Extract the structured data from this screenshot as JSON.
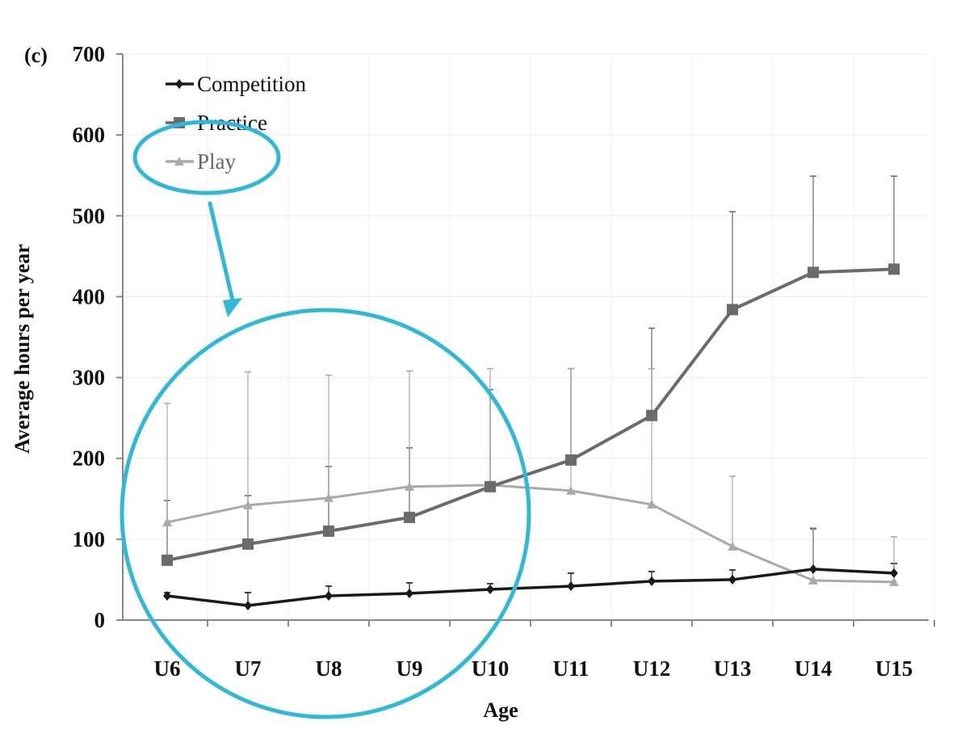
{
  "chart_data": {
    "type": "line",
    "panel_label": "(c)",
    "title": "",
    "xlabel": "Age",
    "ylabel": "Average hours per year",
    "ylim": [
      0,
      700
    ],
    "yticks": [
      0,
      100,
      200,
      300,
      400,
      500,
      600,
      700
    ],
    "categories": [
      "U6",
      "U7",
      "U8",
      "U9",
      "U10",
      "U11",
      "U12",
      "U13",
      "U14",
      "U15"
    ],
    "grid": true,
    "legend_position": "top-left",
    "series": [
      {
        "name": "Competition",
        "marker": "diamond",
        "color": "#1a1a1a",
        "values": [
          30,
          18,
          30,
          33,
          38,
          42,
          48,
          50,
          63,
          58
        ],
        "error_upper": [
          34,
          34,
          42,
          46,
          45,
          58,
          60,
          62,
          113,
          70
        ]
      },
      {
        "name": "Practice",
        "marker": "square",
        "color": "#6b6b6b",
        "values": [
          74,
          94,
          110,
          127,
          165,
          198,
          253,
          384,
          430,
          434
        ],
        "error_upper": [
          148,
          154,
          190,
          213,
          285,
          311,
          361,
          505,
          549,
          549
        ]
      },
      {
        "name": "Play",
        "marker": "triangle",
        "color": "#aaaaaa",
        "values": [
          121,
          142,
          151,
          165,
          167,
          160,
          143,
          91,
          49,
          47
        ],
        "error_upper": [
          268,
          307,
          303,
          308,
          311,
          311,
          311,
          178,
          114,
          103
        ]
      }
    ],
    "annotations": [
      {
        "shape": "ellipse",
        "color": "#30b8d8",
        "target": "legend-play"
      },
      {
        "shape": "circle",
        "color": "#30b8d8",
        "target": "U6-U10"
      },
      {
        "shape": "arrow",
        "color": "#30b8d8"
      }
    ]
  }
}
